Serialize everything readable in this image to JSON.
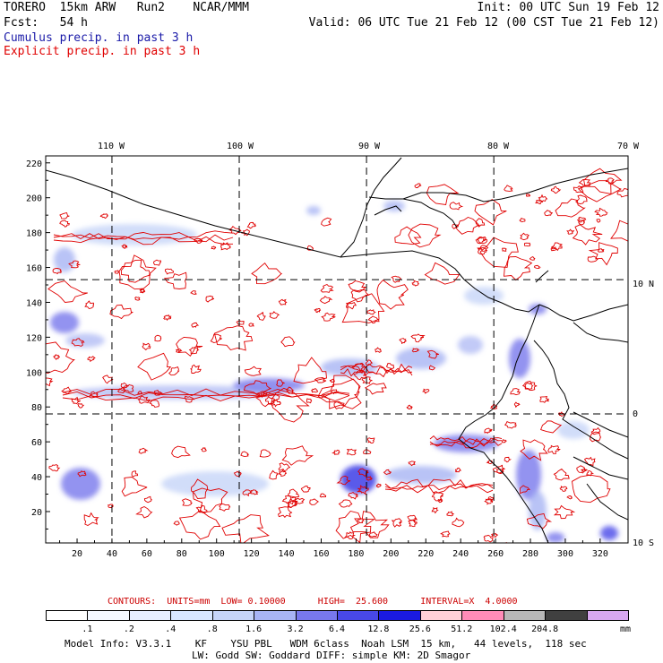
{
  "header": {
    "line1_left": "TORERO  15km ARW   Run2    NCAR/MMM",
    "line1_right": "Init: 00 UTC Sun 19 Feb 12",
    "line2_left": "Fcst:   54 h",
    "line2_right": "Valid: 06 UTC Tue 21 Feb 12 (00 CST Tue 21 Feb 12)",
    "cumulus_label": "Cumulus precip. in past 3 h",
    "explicit_label": "Explicit precip. in past 3 h",
    "cumulus_color": "#1a1aa8",
    "explicit_color": "#e00000"
  },
  "map": {
    "lon_labels": [
      "110 W",
      "100 W",
      "90 W",
      "80 W",
      "70 W"
    ],
    "lat_labels": [
      "10 N",
      "0",
      "10 S"
    ],
    "y_ticks": [
      "220",
      "200",
      "180",
      "160",
      "140",
      "120",
      "100",
      "80",
      "60",
      "40",
      "20"
    ],
    "x_ticks": [
      "20",
      "40",
      "60",
      "80",
      "100",
      "120",
      "140",
      "160",
      "180",
      "200",
      "220",
      "240",
      "260",
      "280",
      "300",
      "320"
    ],
    "grid_x_values": [
      40,
      113,
      186,
      259
    ],
    "grid_y_values": [
      153,
      76
    ]
  },
  "contour_info": {
    "text": "CONTOURS:  UNITS=mm  LOW= 0.10000      HIGH=  25.600      INTERVAL=X  4.0000",
    "color": "#cc0000"
  },
  "legend": {
    "colors": [
      "#ffffff",
      "#f4f8ff",
      "#e6eeff",
      "#d8e6ff",
      "#c6d4f8",
      "#a8b4f4",
      "#7878ec",
      "#4848e8",
      "#1a1ae0",
      "#ffd0d8",
      "#ff8cb8",
      "#b8b8b8",
      "#404040",
      "#d8a8f0"
    ],
    "ticks": [
      ".1",
      ".2",
      ".4",
      ".8",
      "1.6",
      "3.2",
      "6.4",
      "12.8",
      "25.6",
      "51.2",
      "102.4",
      "204.8"
    ],
    "units": "mm"
  },
  "footer": {
    "line1": "Model Info: V3.3.1    KF    YSU PBL   WDM 6class  Noah LSM  15 km,   44 levels,  118 sec",
    "line2": "LW: Godd SW: Goddard DIFF: simple KM: 2D Smagor"
  }
}
